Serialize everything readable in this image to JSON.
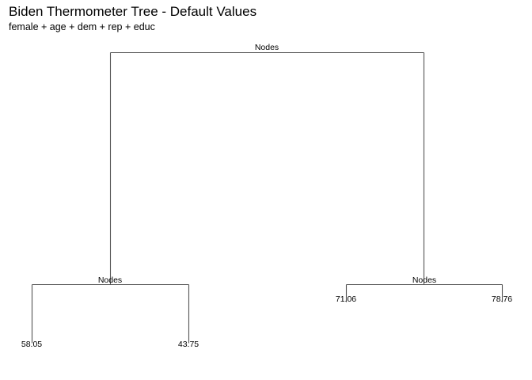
{
  "title": "Biden Thermometer Tree - Default Values",
  "subtitle": "female + age + dem + rep + educ",
  "colors": {
    "edge": "#555555",
    "text": "#000000",
    "background": "#ffffff"
  },
  "tree": {
    "root": {
      "label": "Nodes",
      "left": {
        "label": "Nodes",
        "left": {
          "label": "58.05"
        },
        "right": {
          "label": "43.75"
        }
      },
      "right": {
        "label": "Nodes",
        "left": {
          "label": "71.06"
        },
        "right": {
          "label": "78.76"
        }
      }
    }
  }
}
